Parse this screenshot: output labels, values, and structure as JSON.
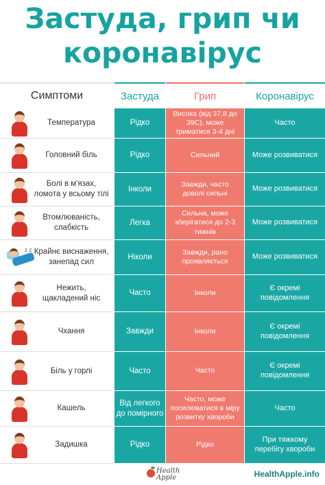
{
  "title": {
    "line1": "Застуда, грип чи",
    "line2": "коронавірус"
  },
  "headers": {
    "symptoms": "Симптоми",
    "cold": "Застуда",
    "flu": "Грип",
    "covid": "Коронавірус"
  },
  "colors": {
    "teal": "#1aa7a4",
    "salmon": "#f07a6e",
    "title_teal": "#17a3a0"
  },
  "rows": [
    {
      "icon": "person-thermometer-icon",
      "symptom": "Температура",
      "cold": "Рідко",
      "flu": "Висока (від 37,8 до 39С), може триматися 3-4 дні",
      "covid": "Часто"
    },
    {
      "icon": "person-headache-icon",
      "symptom": "Головний біль",
      "cold": "Рідко",
      "flu": "Сильний",
      "covid": "Може розвиватися"
    },
    {
      "icon": "person-body-ache-icon",
      "symptom": "Болі в м'язах, ломота у всьому тілі",
      "cold": "Інколи",
      "flu": "Завжди, часто доволі сильні",
      "covid": "Може розвиватися"
    },
    {
      "icon": "person-tired-icon",
      "symptom": "Втомлюваність, слабкість",
      "cold": "Легка",
      "flu": "Сильна, може зберігатися до 2-3 тижнів",
      "covid": "Може розвиватися"
    },
    {
      "icon": "person-sleeping-icon",
      "symptom": "Крайнє виснаження, занепад сил",
      "cold": "Ніколи",
      "flu": "Завжди, рано проявляється",
      "covid": "Може розвиватися"
    },
    {
      "icon": "person-runny-nose-icon",
      "symptom": "Нежить, щакладений ніс",
      "cold": "Часто",
      "flu": "Інколи",
      "covid": "Є окремі повідомлення"
    },
    {
      "icon": "person-sneezing-icon",
      "symptom": "Чхання",
      "cold": "Завжди",
      "flu": "Інколи",
      "covid": "Є окремі повідомлення"
    },
    {
      "icon": "person-sore-throat-icon",
      "symptom": "Біль у горлі",
      "cold": "Часто",
      "flu": "Часто",
      "covid": "Є окремі повідомлення"
    },
    {
      "icon": "person-cough-icon",
      "symptom": "Кашель",
      "cold": "Від легкого до помірного",
      "flu": "Часто, може посилюватися в міру розвитку хвороби",
      "covid": "Часто"
    },
    {
      "icon": "person-shortness-breath-icon",
      "symptom": "Задишка",
      "cold": "Рідко",
      "flu": "Рідко",
      "covid": "При тяжкому перебігу хвороби"
    }
  ],
  "footer": {
    "logo_line1": "Health",
    "logo_line2": "Apple",
    "site": "HealthApple.info"
  }
}
